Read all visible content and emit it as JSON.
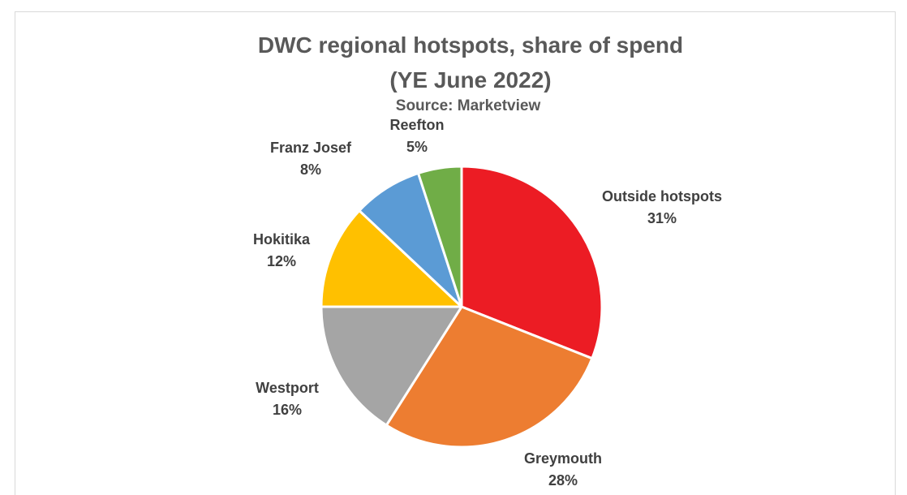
{
  "chart_data": {
    "type": "pie",
    "title": "DWC regional hotspots, share of spend",
    "subtitle": "(YE June 2022)",
    "source": "Source: Marketview",
    "categories": [
      "Outside hotspots",
      "Greymouth",
      "Westport",
      "Hokitika",
      "Franz Josef",
      "Reefton"
    ],
    "values": [
      31,
      28,
      16,
      12,
      8,
      5
    ],
    "value_labels": [
      "31%",
      "28%",
      "16%",
      "12%",
      "8%",
      "5%"
    ],
    "colors": [
      "#ec1c24",
      "#ed7d31",
      "#a5a5a5",
      "#ffc000",
      "#5b9bd5",
      "#70ad47"
    ],
    "start_angle": "12 o'clock",
    "direction": "clockwise",
    "legend": "none"
  }
}
